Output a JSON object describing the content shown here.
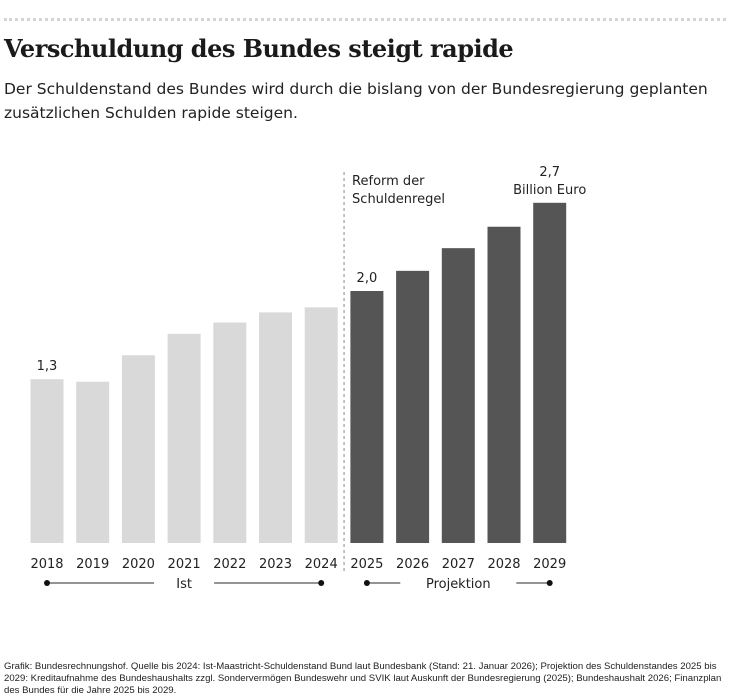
{
  "title": "Verschuldung des Bundes steigt rapide",
  "subtitle": "Der Schuldenstand des Bundes wird durch die bislang von der Bundesregierung geplanten zusätzlichen Schulden rapide steigen.",
  "source": "Grafik: Bundesrechnungshof. Quelle bis 2024: Ist-Maastricht-Schuldenstand Bund laut Bundesbank (Stand: 21. Januar 2026); Projektion des Schuldenstandes 2025 bis 2029: Kreditaufnahme des Bundeshaushalts zzgl. Sondervermögen Bundeswehr und SVIK laut Auskunft der Bundesregierung (2025); Bundeshaushalt 2026; Finanzplan des Bundes für die Jahre 2025 bis 2029.",
  "chart_data": {
    "type": "bar",
    "categories": [
      "2018",
      "2019",
      "2020",
      "2021",
      "2022",
      "2023",
      "2024",
      "2025",
      "2026",
      "2027",
      "2028",
      "2029"
    ],
    "values": [
      1.3,
      1.28,
      1.49,
      1.66,
      1.75,
      1.83,
      1.87,
      2.0,
      2.16,
      2.34,
      2.51,
      2.7
    ],
    "unit": "Billion Euro",
    "data_labels": {
      "2018": "1,3",
      "2025": "2,0",
      "2029": "2,7"
    },
    "unit_label": "Billion Euro",
    "annotation": [
      "Reform der",
      "Schuldenregel"
    ],
    "groups": [
      {
        "name": "Ist",
        "from": "2018",
        "to": "2024",
        "color": "#d9d9d9"
      },
      {
        "name": "Projektion",
        "from": "2025",
        "to": "2029",
        "color": "#555555"
      }
    ],
    "grid": false
  }
}
